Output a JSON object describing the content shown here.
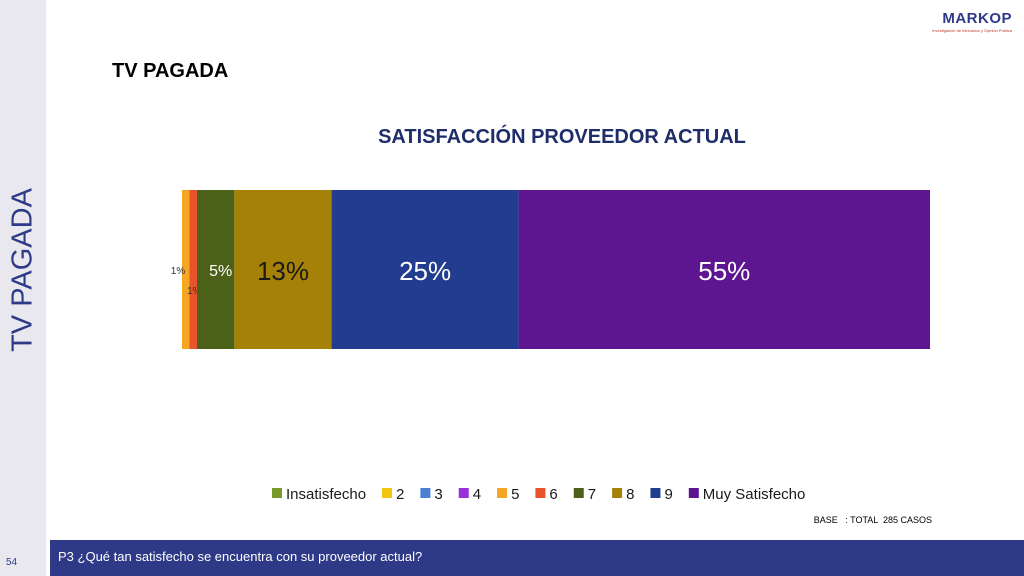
{
  "side_title": "TV PAGADA",
  "section_title": "TV PAGADA",
  "logo": {
    "name": "MARKOP",
    "tagline": "Investigación de Mercados y Opinión Pública"
  },
  "base_note": "BASE   : TOTAL  285 CASOS",
  "question": "P3 ¿Qué tan satisfecho se encuentra con su proveedor actual?",
  "page_number": "54",
  "colors": {
    "accent": "#2e3a87",
    "footer": "#2e3a87"
  },
  "chart_data": {
    "type": "bar",
    "orientation": "horizontal-stacked-100",
    "title": "SATISFACCIÓN PROVEEDOR ACTUAL",
    "xlim": [
      0,
      100
    ],
    "grid": false,
    "legend_position": "bottom",
    "series": [
      {
        "name": "Insatisfecho",
        "value": 0,
        "label": "",
        "color": "#7a9a2e"
      },
      {
        "name": "2",
        "value": 0,
        "label": "",
        "color": "#f2c40f"
      },
      {
        "name": "3",
        "value": 0,
        "label": "",
        "color": "#4a7fd4"
      },
      {
        "name": "4",
        "value": 0,
        "label": "",
        "color": "#9b30d9"
      },
      {
        "name": "5",
        "value": 1,
        "label": "1%",
        "color": "#f5a623"
      },
      {
        "name": "6",
        "value": 1,
        "label": "1%",
        "color": "#e8532a"
      },
      {
        "name": "7",
        "value": 5,
        "label": "5%",
        "color": "#4c6118"
      },
      {
        "name": "8",
        "value": 13,
        "label": "13%",
        "color": "#a68108"
      },
      {
        "name": "9",
        "value": 25,
        "label": "25%",
        "color": "#223c8f"
      },
      {
        "name": "Muy Satisfecho",
        "value": 55,
        "label": "55%",
        "color": "#5e1590"
      }
    ]
  }
}
